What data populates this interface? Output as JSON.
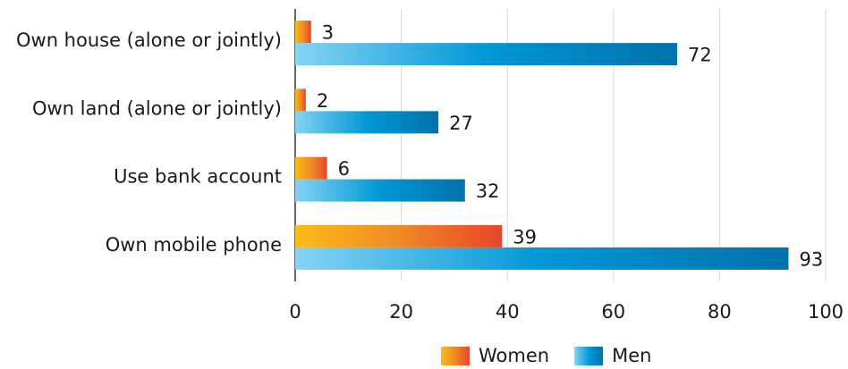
{
  "chart_data": {
    "type": "hbar",
    "categories": [
      "Own house (alone or jointly)",
      "Own land (alone or jointly)",
      "Use bank account",
      "Own mobile phone"
    ],
    "series": [
      {
        "name": "Women",
        "color": "#e8562a",
        "gradient": [
          "#fbbc17",
          "#f08a25",
          "#e8452a"
        ],
        "values": [
          3,
          2,
          6,
          39
        ]
      },
      {
        "name": "Men",
        "color": "#0095d3",
        "gradient": [
          "#86d3f4",
          "#0098d6",
          "#0071ab"
        ],
        "values": [
          72,
          27,
          32,
          93
        ]
      }
    ],
    "xlim": [
      0,
      100
    ],
    "xticks": [
      0,
      20,
      40,
      60,
      80,
      100
    ],
    "grid": true,
    "legend": "bottom"
  }
}
